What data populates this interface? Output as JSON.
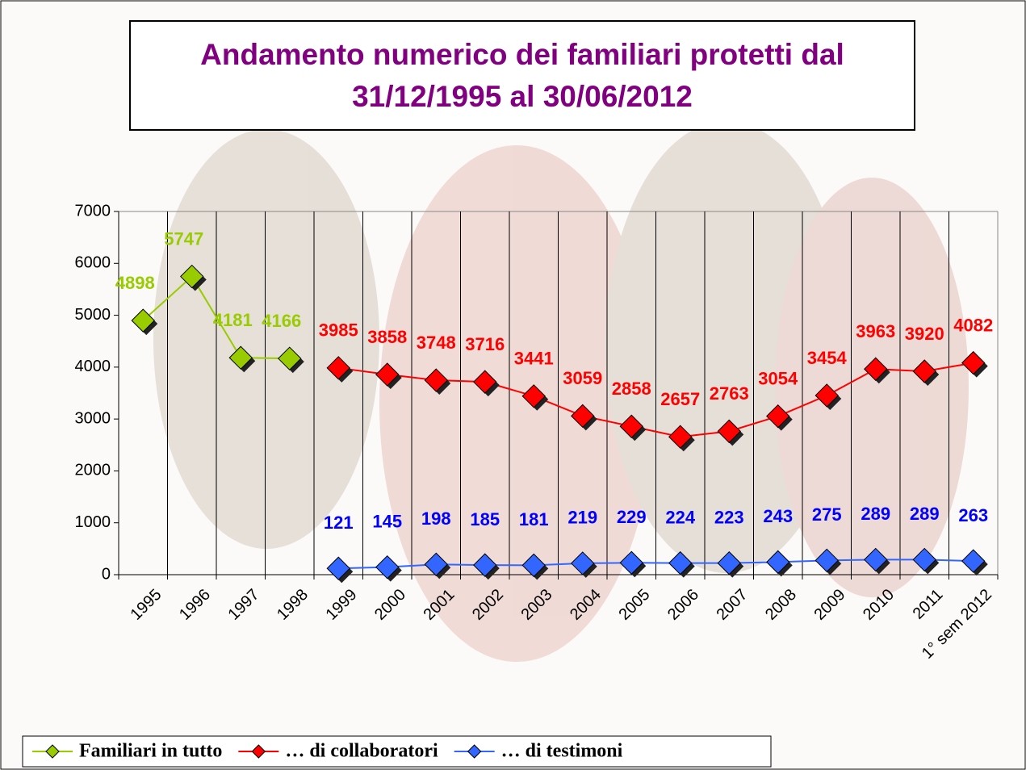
{
  "chart_data": {
    "type": "line",
    "title": "Andamento numerico dei familiari protetti dal\n31/12/1995 al 30/06/2012",
    "categories": [
      "1995",
      "1996",
      "1997",
      "1998",
      "1999",
      "2000",
      "2001",
      "2002",
      "2003",
      "2004",
      "2005",
      "2006",
      "2007",
      "2008",
      "2009",
      "2010",
      "2011",
      "1° sem 2012"
    ],
    "series": [
      {
        "name": "Familiari in tutto",
        "color": "#99cc00",
        "label_color": "#99cc00",
        "values": [
          4898,
          5747,
          4181,
          4166,
          null,
          null,
          null,
          null,
          null,
          null,
          null,
          null,
          null,
          null,
          null,
          null,
          null,
          null
        ]
      },
      {
        "name": "… di collaboratori",
        "color": "#ff0000",
        "label_color": "#ff0000",
        "values": [
          null,
          null,
          null,
          null,
          3985,
          3858,
          3748,
          3716,
          3441,
          3059,
          2858,
          2657,
          2763,
          3054,
          3454,
          3963,
          3920,
          4082
        ]
      },
      {
        "name": "… di testimoni",
        "color": "#3366ff",
        "label_color": "#0000ff",
        "values": [
          null,
          null,
          null,
          null,
          121,
          145,
          198,
          185,
          181,
          219,
          229,
          224,
          223,
          243,
          275,
          289,
          289,
          263
        ]
      }
    ],
    "ylim": [
      0,
      7000
    ],
    "yticks": [
      0,
      1000,
      2000,
      3000,
      4000,
      5000,
      6000,
      7000
    ],
    "grid": "vertical",
    "legend": "bottom-left"
  }
}
